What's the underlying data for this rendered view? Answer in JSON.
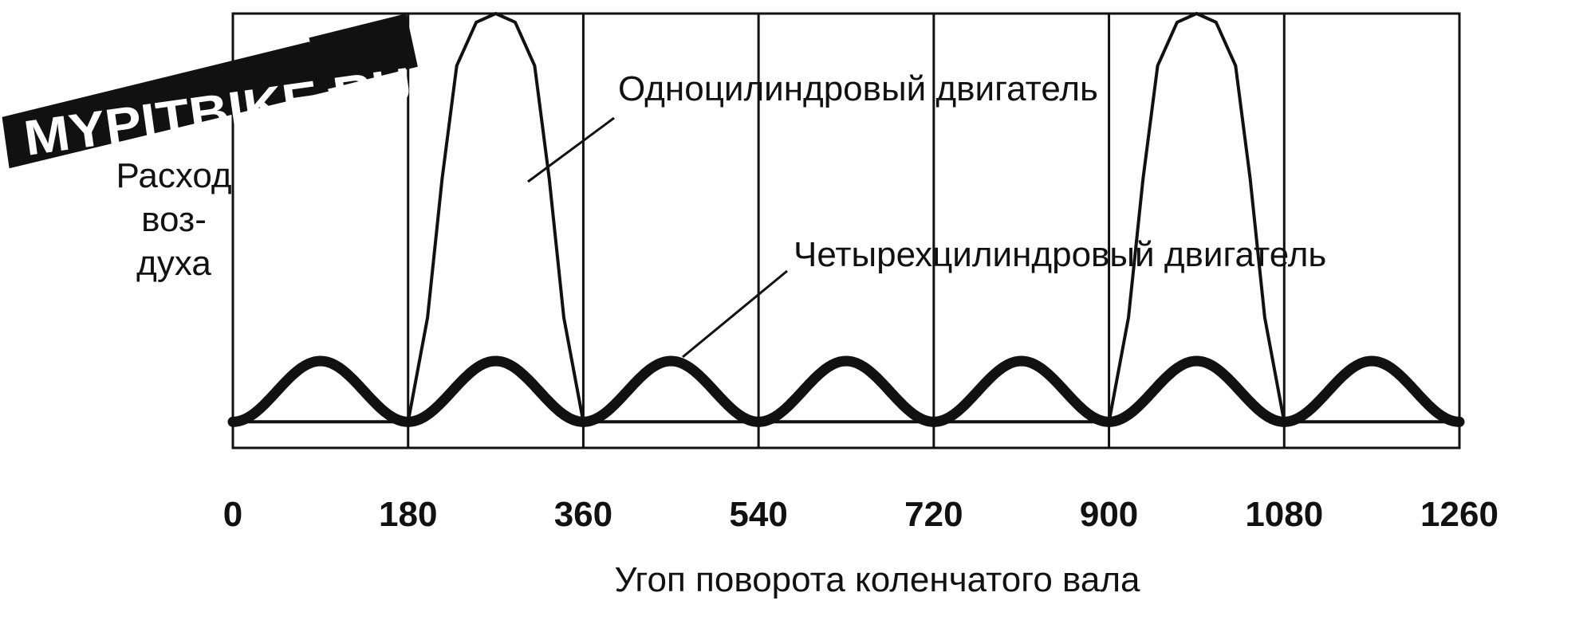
{
  "chart_data": {
    "type": "line",
    "xlabel": "Угоп поворота коленчатого вала",
    "ylabel_lines": [
      "Расход",
      "воз-",
      "духа"
    ],
    "x_ticks": [
      0,
      180,
      360,
      540,
      720,
      900,
      1080,
      1260
    ],
    "xlim": [
      0,
      1260
    ],
    "ylim": [
      0,
      1
    ],
    "grid": "vertical lines every 180",
    "series": [
      {
        "name": "Одноцилиндровый двигатель",
        "x": [
          0,
          180,
          200,
          215,
          230,
          250,
          270,
          290,
          310,
          325,
          340,
          360,
          720,
          900,
          920,
          935,
          950,
          970,
          990,
          1010,
          1030,
          1045,
          1060,
          1080,
          1260
        ],
        "y": [
          0.06,
          0.06,
          0.3,
          0.62,
          0.88,
          0.98,
          1.0,
          0.98,
          0.88,
          0.62,
          0.3,
          0.06,
          0.06,
          0.06,
          0.3,
          0.62,
          0.88,
          0.98,
          1.0,
          0.98,
          0.88,
          0.62,
          0.3,
          0.06,
          0.06
        ]
      },
      {
        "name": "Четырехцилиндровый двигатель",
        "periodic_cycle": 180,
        "peaks_at": [
          90,
          270,
          450,
          630,
          810,
          990,
          1170
        ],
        "troughs_at": [
          0,
          180,
          360,
          540,
          720,
          900,
          1080,
          1260
        ],
        "y_min": 0.06,
        "y_max": 0.2
      }
    ]
  },
  "annotations": {
    "single": "Одноцилиндровый двигатель",
    "four": "Четырехцилиндровый двигатель"
  },
  "watermark": {
    "text": "MYPITBIKE.RU"
  }
}
